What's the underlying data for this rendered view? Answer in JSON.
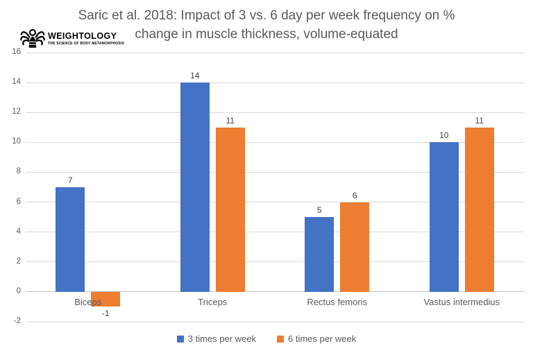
{
  "logo": {
    "name": "WEIGHTOLOGY",
    "tagline": "THE SCIENCE OF BODY METAMORPHOSIS",
    "icon": "butterfly-figure-icon"
  },
  "title": {
    "line1": "Saric et al. 2018: Impact of 3 vs. 6 day per week frequency on %",
    "line2": "change in muscle thickness, volume-equated"
  },
  "chart_data": {
    "type": "bar",
    "categories": [
      "Biceps",
      "Triceps",
      "Rectus femoris",
      "Vastus intermedius"
    ],
    "series": [
      {
        "name": "3 times per week",
        "color": "#4472C4",
        "values": [
          7,
          14,
          5,
          10
        ]
      },
      {
        "name": "6 times per week",
        "color": "#ED7D31",
        "values": [
          -1,
          11,
          6,
          11
        ]
      }
    ],
    "y_ticks": [
      16,
      14,
      12,
      10,
      8,
      6,
      4,
      2,
      0,
      -2
    ],
    "ylim": [
      -2,
      16
    ],
    "grid": true,
    "data_labels": true,
    "legend_position": "bottom",
    "xlabel": "",
    "ylabel": ""
  },
  "colors": {
    "series1": "#4472C4",
    "series2": "#ED7D31",
    "gridline": "#D9D9D9",
    "axis_text": "#595959",
    "title_text": "#595959",
    "data_label_text": "#404040",
    "logo_text": "#000000"
  }
}
